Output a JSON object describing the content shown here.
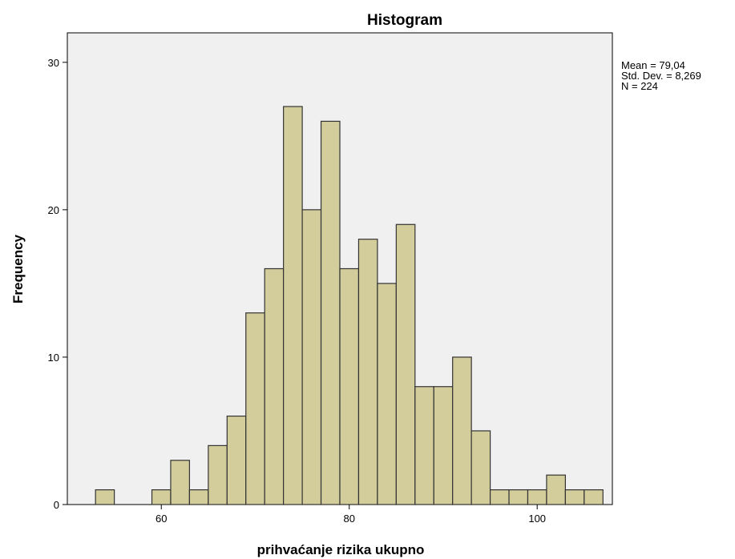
{
  "chart_data": {
    "type": "bar",
    "title": "Histogram",
    "xlabel": "prihvaćanje rizika ukupno",
    "ylabel": "Frequency",
    "xlim": [
      50,
      108
    ],
    "ylim": [
      0,
      32
    ],
    "xticks": [
      60,
      80,
      100
    ],
    "yticks": [
      0,
      10,
      20,
      30
    ],
    "bin_width": 2,
    "bins": [
      {
        "start": 53,
        "value": 1
      },
      {
        "start": 55,
        "value": 0
      },
      {
        "start": 57,
        "value": 0
      },
      {
        "start": 59,
        "value": 1
      },
      {
        "start": 61,
        "value": 3
      },
      {
        "start": 63,
        "value": 1
      },
      {
        "start": 65,
        "value": 4
      },
      {
        "start": 67,
        "value": 6
      },
      {
        "start": 69,
        "value": 13
      },
      {
        "start": 71,
        "value": 16
      },
      {
        "start": 73,
        "value": 27
      },
      {
        "start": 75,
        "value": 20
      },
      {
        "start": 77,
        "value": 26
      },
      {
        "start": 79,
        "value": 16
      },
      {
        "start": 81,
        "value": 18
      },
      {
        "start": 83,
        "value": 15
      },
      {
        "start": 85,
        "value": 19
      },
      {
        "start": 87,
        "value": 8
      },
      {
        "start": 89,
        "value": 8
      },
      {
        "start": 91,
        "value": 10
      },
      {
        "start": 93,
        "value": 5
      },
      {
        "start": 95,
        "value": 1
      },
      {
        "start": 97,
        "value": 1
      },
      {
        "start": 99,
        "value": 1
      },
      {
        "start": 101,
        "value": 2
      },
      {
        "start": 103,
        "value": 1
      },
      {
        "start": 105,
        "value": 1
      }
    ],
    "stats": [
      "Mean = 79,04",
      "Std. Dev. = 8,269",
      "N = 224"
    ],
    "grid": false,
    "colors": {
      "bar_fill": "#d3cd9c",
      "bar_stroke": "#333333",
      "plot_bg": "#f0f0f0",
      "axis": "#000000"
    }
  }
}
